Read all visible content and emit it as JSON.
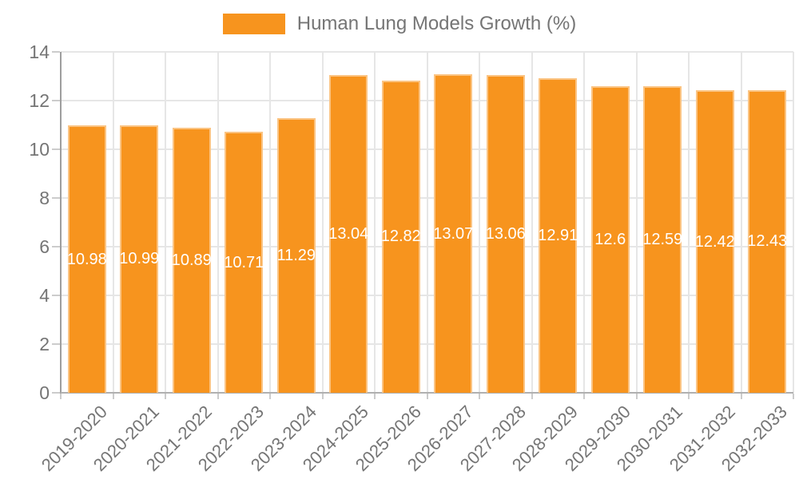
{
  "legend": {
    "label": "Human Lung Models Growth (%)",
    "swatch_color": "#f7941e"
  },
  "chart_data": {
    "type": "bar",
    "title": "Human Lung Models Growth (%)",
    "categories": [
      "2019-2020",
      "2020-2021",
      "2021-2022",
      "2022-2023",
      "2023-2024",
      "2024-2025",
      "2025-2026",
      "2026-2027",
      "2027-2028",
      "2028-2029",
      "2029-2030",
      "2030-2031",
      "2031-2032",
      "2032-2033"
    ],
    "values": [
      10.98,
      10.99,
      10.89,
      10.71,
      11.29,
      13.04,
      12.82,
      13.07,
      13.06,
      12.91,
      12.6,
      12.59,
      12.42,
      12.43
    ],
    "value_labels": [
      "10.98",
      "10.99",
      "10.89",
      "10.71",
      "11.29",
      "13.04",
      "12.82",
      "13.07",
      "13.06",
      "12.91",
      "12.6",
      "12.59",
      "12.42",
      "12.43"
    ],
    "xlabel": "",
    "ylabel": "",
    "ylim": [
      0,
      14
    ],
    "yticks": [
      0,
      2,
      4,
      6,
      8,
      10,
      12,
      14
    ],
    "grid": "horizontal and vertical, light gray",
    "legend_position": "top",
    "bar_color": "#f7941e",
    "bar_edge_color": "rgba(255,255,255,0.45)",
    "annotation_color": "#ffffff",
    "axis_text_color": "#757575",
    "gridline_color": "#e6e6e6",
    "axis_line_color": "#a8a8a8"
  }
}
